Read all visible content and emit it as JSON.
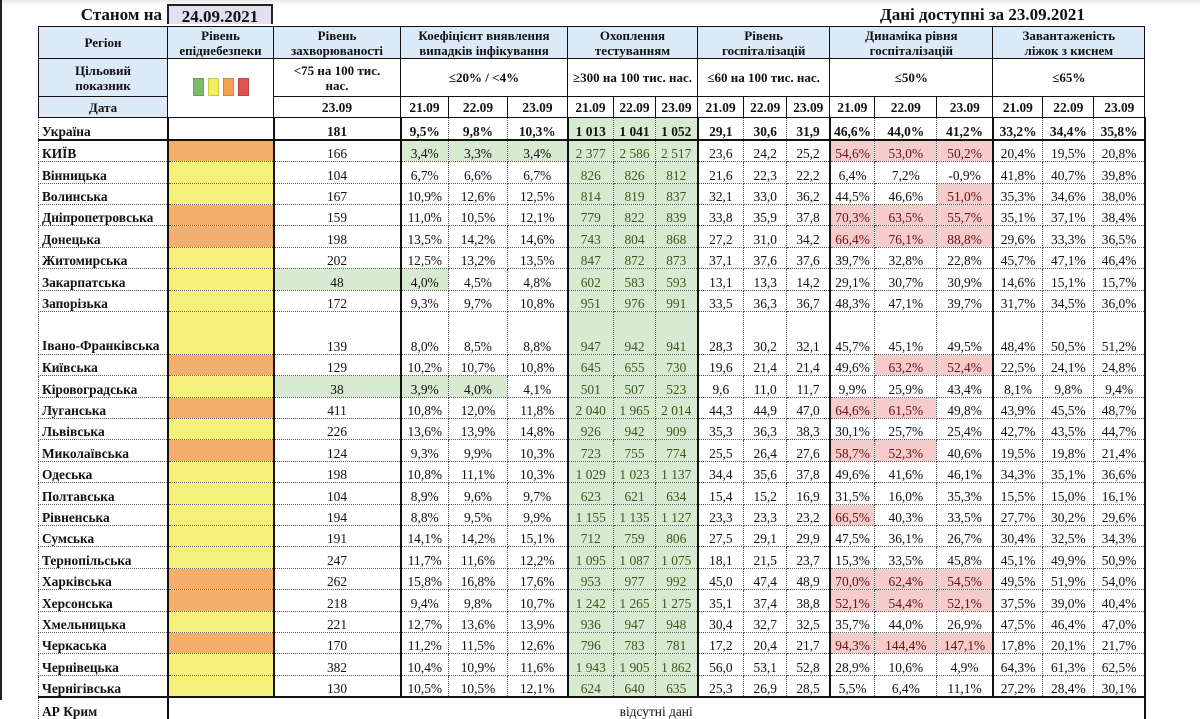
{
  "status_label": "Станом на",
  "status_date": "24.09.2021",
  "data_available": "Дані доступні за  23.09.2021",
  "headers": {
    "region": "Регіон",
    "epi_level": "Рівень епіднебезпеки",
    "incidence": "Рівень захворюваності",
    "detection": "Коефіцієнт виявлення випадків інфікування",
    "testing": "Охоплення тестуванням",
    "hosp": "Рівень госпіталізацій",
    "hosp_dyn": "Динаміка рівня госпіталізацій",
    "beds": "Завантаженість ліжок з киснем"
  },
  "targets": {
    "label": "Цільовий показник",
    "incidence": "<75 на 100 тис. нас.",
    "detection": "≤20% / <4%",
    "testing": "≥300 на 100 тис. нас.",
    "hosp": "≤60 на 100 тис. нас.",
    "hosp_dyn": "≤50%",
    "beds": "≤65%"
  },
  "legend_colors": [
    "#7dba6a",
    "#f2ee5e",
    "#f5a04a",
    "#e05252"
  ],
  "date_row": {
    "label": "Дата",
    "incidence": "23.09",
    "d1": "21.09",
    "d2": "22.09",
    "d3": "23.09"
  },
  "ukraine": {
    "name": "Україна",
    "incidence": "181",
    "detection": [
      "9,5%",
      "9,8%",
      "10,3%"
    ],
    "testing": [
      "1 013",
      "1 041",
      "1 052"
    ],
    "hosp": [
      "29,1",
      "30,6",
      "31,9"
    ],
    "hosp_dyn": [
      "46,6%",
      "44,0%",
      "41,2%"
    ],
    "beds": [
      "33,2%",
      "34,4%",
      "35,8%"
    ]
  },
  "colors": {
    "orange": "#f4b06a",
    "yellow": "#f5f07a",
    "green_fill": "#d9ead3",
    "pink_fill": "#f4cccc",
    "header_fill": "#dce9f6",
    "date_fill": "#e3def0"
  },
  "regions": [
    {
      "name": "КИЇВ",
      "epi": "orange",
      "incidence": "166",
      "detection": [
        "3,4%",
        "3,3%",
        "3,4%"
      ],
      "testing": [
        "2 377",
        "2 586",
        "2 517"
      ],
      "hosp": [
        "23,6",
        "24,2",
        "25,2"
      ],
      "hosp_dyn": [
        "54,6%",
        "53,0%",
        "50,2%"
      ],
      "beds": [
        "20,4%",
        "19,5%",
        "20,8%"
      ]
    },
    {
      "name": "Вінницька",
      "epi": "yellow",
      "incidence": "104",
      "detection": [
        "6,7%",
        "6,6%",
        "6,7%"
      ],
      "testing": [
        "826",
        "826",
        "812"
      ],
      "hosp": [
        "21,6",
        "22,3",
        "22,2"
      ],
      "hosp_dyn": [
        "6,4%",
        "7,2%",
        "-0,9%"
      ],
      "beds": [
        "41,8%",
        "40,7%",
        "39,8%"
      ]
    },
    {
      "name": "Волинська",
      "epi": "yellow",
      "incidence": "167",
      "detection": [
        "10,9%",
        "12,6%",
        "12,5%"
      ],
      "testing": [
        "814",
        "819",
        "837"
      ],
      "hosp": [
        "32,1",
        "33,0",
        "36,2"
      ],
      "hosp_dyn": [
        "44,5%",
        "46,6%",
        "51,0%"
      ],
      "beds": [
        "35,3%",
        "34,6%",
        "38,0%"
      ]
    },
    {
      "name": "Дніпропетровська",
      "epi": "orange",
      "incidence": "159",
      "detection": [
        "11,0%",
        "10,5%",
        "12,1%"
      ],
      "testing": [
        "779",
        "822",
        "839"
      ],
      "hosp": [
        "33,8",
        "35,9",
        "37,8"
      ],
      "hosp_dyn": [
        "70,3%",
        "63,5%",
        "55,7%"
      ],
      "beds": [
        "35,1%",
        "37,1%",
        "38,4%"
      ]
    },
    {
      "name": "Донецька",
      "epi": "orange",
      "incidence": "198",
      "detection": [
        "13,5%",
        "14,2%",
        "14,6%"
      ],
      "testing": [
        "743",
        "804",
        "868"
      ],
      "hosp": [
        "27,2",
        "31,0",
        "34,2"
      ],
      "hosp_dyn": [
        "66,4%",
        "76,1%",
        "88,8%"
      ],
      "beds": [
        "29,6%",
        "33,3%",
        "36,5%"
      ]
    },
    {
      "name": "Житомирська",
      "epi": "yellow",
      "incidence": "202",
      "detection": [
        "12,5%",
        "13,2%",
        "13,5%"
      ],
      "testing": [
        "847",
        "872",
        "873"
      ],
      "hosp": [
        "37,1",
        "37,6",
        "37,6"
      ],
      "hosp_dyn": [
        "39,7%",
        "32,8%",
        "22,8%"
      ],
      "beds": [
        "45,7%",
        "47,1%",
        "46,4%"
      ]
    },
    {
      "name": "Закарпатська",
      "epi": "yellow",
      "incidence": "48",
      "detection": [
        "4,0%",
        "4,5%",
        "4,8%"
      ],
      "testing": [
        "602",
        "583",
        "593"
      ],
      "hosp": [
        "13,1",
        "13,3",
        "14,2"
      ],
      "hosp_dyn": [
        "29,1%",
        "30,7%",
        "30,9%"
      ],
      "beds": [
        "14,6%",
        "15,1%",
        "15,7%"
      ]
    },
    {
      "name": "Запорізька",
      "epi": "yellow",
      "incidence": "172",
      "detection": [
        "9,3%",
        "9,7%",
        "10,8%"
      ],
      "testing": [
        "951",
        "976",
        "991"
      ],
      "hosp": [
        "33,5",
        "36,3",
        "36,7"
      ],
      "hosp_dyn": [
        "48,3%",
        "47,1%",
        "39,7%"
      ],
      "beds": [
        "31,7%",
        "34,5%",
        "36,0%"
      ]
    },
    {
      "name": "Івано-Франківська",
      "epi": "yellow",
      "incidence": "139",
      "detection": [
        "8,0%",
        "8,5%",
        "8,8%"
      ],
      "testing": [
        "947",
        "942",
        "941"
      ],
      "hosp": [
        "28,3",
        "30,2",
        "32,1"
      ],
      "hosp_dyn": [
        "45,7%",
        "45,1%",
        "49,5%"
      ],
      "beds": [
        "48,4%",
        "50,5%",
        "51,2%"
      ]
    },
    {
      "name": "Київська",
      "epi": "orange",
      "incidence": "129",
      "detection": [
        "10,2%",
        "10,7%",
        "10,8%"
      ],
      "testing": [
        "645",
        "655",
        "730"
      ],
      "hosp": [
        "19,6",
        "21,4",
        "21,4"
      ],
      "hosp_dyn": [
        "49,6%",
        "63,2%",
        "52,4%"
      ],
      "beds": [
        "22,5%",
        "24,1%",
        "24,8%"
      ]
    },
    {
      "name": "Кіровоградська",
      "epi": "yellow",
      "incidence": "38",
      "detection": [
        "3,9%",
        "4,0%",
        "4,1%"
      ],
      "testing": [
        "501",
        "507",
        "523"
      ],
      "hosp": [
        "9,6",
        "11,0",
        "11,7"
      ],
      "hosp_dyn": [
        "9,9%",
        "25,9%",
        "43,4%"
      ],
      "beds": [
        "8,1%",
        "9,8%",
        "9,4%"
      ]
    },
    {
      "name": "Луганська",
      "epi": "orange",
      "incidence": "411",
      "detection": [
        "10,8%",
        "12,0%",
        "11,8%"
      ],
      "testing": [
        "2 040",
        "1 965",
        "2 014"
      ],
      "hosp": [
        "44,3",
        "44,9",
        "47,0"
      ],
      "hosp_dyn": [
        "64,6%",
        "61,5%",
        "49,8%"
      ],
      "beds": [
        "43,9%",
        "45,5%",
        "48,7%"
      ]
    },
    {
      "name": "Львівська",
      "epi": "yellow",
      "incidence": "226",
      "detection": [
        "13,6%",
        "13,9%",
        "14,8%"
      ],
      "testing": [
        "926",
        "942",
        "909"
      ],
      "hosp": [
        "35,3",
        "36,3",
        "38,3"
      ],
      "hosp_dyn": [
        "30,1%",
        "25,7%",
        "25,4%"
      ],
      "beds": [
        "42,7%",
        "43,5%",
        "44,7%"
      ]
    },
    {
      "name": "Миколаївська",
      "epi": "orange",
      "incidence": "124",
      "detection": [
        "9,3%",
        "9,9%",
        "10,3%"
      ],
      "testing": [
        "723",
        "755",
        "774"
      ],
      "hosp": [
        "25,5",
        "26,4",
        "27,6"
      ],
      "hosp_dyn": [
        "58,7%",
        "52,3%",
        "40,6%"
      ],
      "beds": [
        "19,5%",
        "19,8%",
        "21,4%"
      ]
    },
    {
      "name": "Одеська",
      "epi": "yellow",
      "incidence": "198",
      "detection": [
        "10,8%",
        "11,1%",
        "10,3%"
      ],
      "testing": [
        "1 029",
        "1 023",
        "1 137"
      ],
      "hosp": [
        "34,4",
        "35,6",
        "37,8"
      ],
      "hosp_dyn": [
        "49,6%",
        "41,6%",
        "46,1%"
      ],
      "beds": [
        "34,3%",
        "35,1%",
        "36,6%"
      ]
    },
    {
      "name": "Полтавська",
      "epi": "yellow",
      "incidence": "104",
      "detection": [
        "8,9%",
        "9,6%",
        "9,7%"
      ],
      "testing": [
        "623",
        "621",
        "634"
      ],
      "hosp": [
        "15,4",
        "15,2",
        "16,9"
      ],
      "hosp_dyn": [
        "31,5%",
        "16,0%",
        "35,3%"
      ],
      "beds": [
        "15,5%",
        "15,0%",
        "16,1%"
      ]
    },
    {
      "name": "Рівненська",
      "epi": "yellow",
      "incidence": "194",
      "detection": [
        "8,8%",
        "9,5%",
        "9,9%"
      ],
      "testing": [
        "1 155",
        "1 135",
        "1 127"
      ],
      "hosp": [
        "23,3",
        "23,3",
        "23,2"
      ],
      "hosp_dyn": [
        "66,5%",
        "40,3%",
        "33,5%"
      ],
      "beds": [
        "27,7%",
        "30,2%",
        "29,6%"
      ]
    },
    {
      "name": "Сумська",
      "epi": "yellow",
      "incidence": "191",
      "detection": [
        "14,1%",
        "14,2%",
        "15,1%"
      ],
      "testing": [
        "712",
        "759",
        "806"
      ],
      "hosp": [
        "27,5",
        "29,1",
        "29,9"
      ],
      "hosp_dyn": [
        "47,5%",
        "36,1%",
        "26,7%"
      ],
      "beds": [
        "30,4%",
        "32,5%",
        "34,3%"
      ]
    },
    {
      "name": "Тернопільська",
      "epi": "yellow",
      "incidence": "247",
      "detection": [
        "11,7%",
        "11,6%",
        "12,2%"
      ],
      "testing": [
        "1 095",
        "1 087",
        "1 075"
      ],
      "hosp": [
        "18,1",
        "21,5",
        "23,7"
      ],
      "hosp_dyn": [
        "15,3%",
        "33,5%",
        "45,8%"
      ],
      "beds": [
        "45,1%",
        "49,9%",
        "50,9%"
      ]
    },
    {
      "name": "Харківська",
      "epi": "orange",
      "incidence": "262",
      "detection": [
        "15,8%",
        "16,8%",
        "17,6%"
      ],
      "testing": [
        "953",
        "977",
        "992"
      ],
      "hosp": [
        "45,0",
        "47,4",
        "48,9"
      ],
      "hosp_dyn": [
        "70,0%",
        "62,4%",
        "54,5%"
      ],
      "beds": [
        "49,5%",
        "51,9%",
        "54,0%"
      ]
    },
    {
      "name": "Херсонська",
      "epi": "orange",
      "incidence": "218",
      "detection": [
        "9,4%",
        "9,8%",
        "10,7%"
      ],
      "testing": [
        "1 242",
        "1 265",
        "1 275"
      ],
      "hosp": [
        "35,1",
        "37,4",
        "38,8"
      ],
      "hosp_dyn": [
        "52,1%",
        "54,4%",
        "52,1%"
      ],
      "beds": [
        "37,5%",
        "39,0%",
        "40,4%"
      ]
    },
    {
      "name": "Хмельницька",
      "epi": "yellow",
      "incidence": "221",
      "detection": [
        "12,7%",
        "13,6%",
        "13,9%"
      ],
      "testing": [
        "936",
        "947",
        "948"
      ],
      "hosp": [
        "30,4",
        "32,7",
        "32,5"
      ],
      "hosp_dyn": [
        "35,7%",
        "44,0%",
        "26,9%"
      ],
      "beds": [
        "47,5%",
        "46,4%",
        "47,0%"
      ]
    },
    {
      "name": "Черкаська",
      "epi": "orange",
      "incidence": "170",
      "detection": [
        "11,2%",
        "11,5%",
        "12,6%"
      ],
      "testing": [
        "796",
        "783",
        "781"
      ],
      "hosp": [
        "17,2",
        "20,4",
        "21,7"
      ],
      "hosp_dyn": [
        "94,3%",
        "144,4%",
        "147,1%"
      ],
      "beds": [
        "17,8%",
        "20,1%",
        "21,7%"
      ]
    },
    {
      "name": "Чернівецька",
      "epi": "yellow",
      "incidence": "382",
      "detection": [
        "10,4%",
        "10,9%",
        "11,6%"
      ],
      "testing": [
        "1 943",
        "1 905",
        "1 862"
      ],
      "hosp": [
        "56,0",
        "53,1",
        "52,8"
      ],
      "hosp_dyn": [
        "28,9%",
        "10,6%",
        "4,9%"
      ],
      "beds": [
        "64,3%",
        "61,3%",
        "62,5%"
      ]
    },
    {
      "name": "Чернігівська",
      "epi": "yellow",
      "incidence": "130",
      "detection": [
        "10,5%",
        "10,5%",
        "12,1%"
      ],
      "testing": [
        "624",
        "640",
        "635"
      ],
      "hosp": [
        "25,3",
        "26,9",
        "28,5"
      ],
      "hosp_dyn": [
        "5,5%",
        "6,4%",
        "11,1%"
      ],
      "beds": [
        "27,2%",
        "28,4%",
        "30,1%"
      ]
    }
  ],
  "crimea": {
    "name": "АР Крим",
    "note": "відсутні дані"
  }
}
